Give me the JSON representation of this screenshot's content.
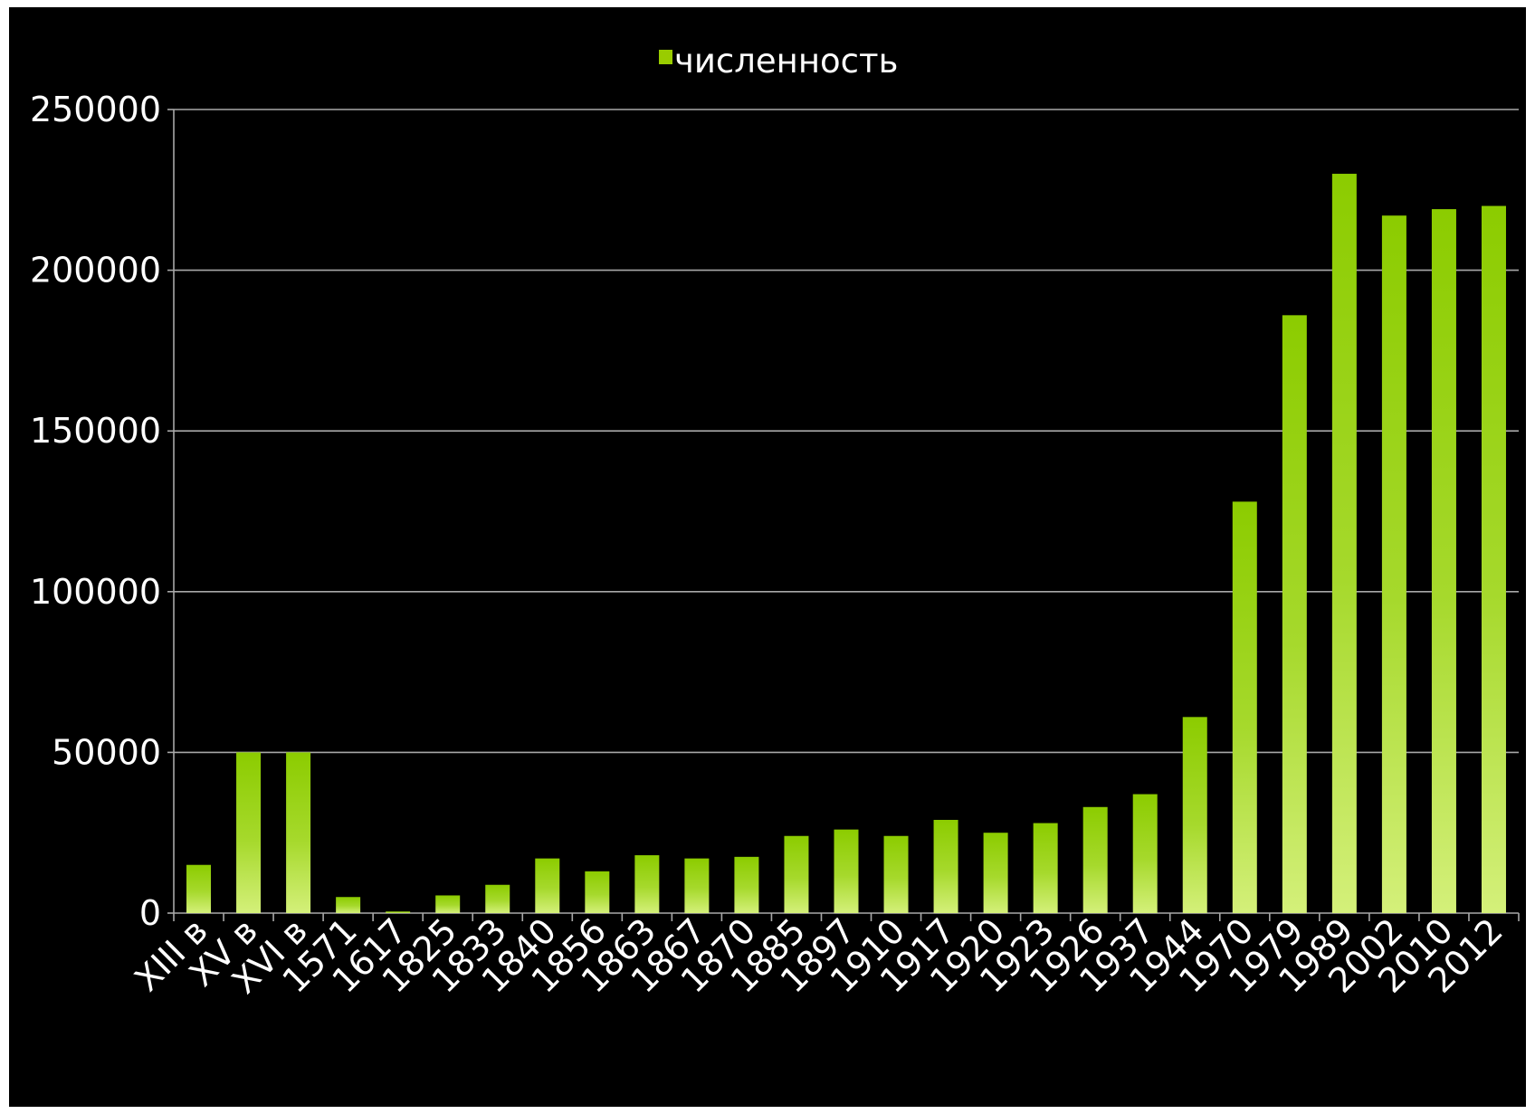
{
  "chart_data": {
    "type": "bar",
    "title": "",
    "xlabel": "",
    "ylabel": "",
    "ylim": [
      0,
      250000
    ],
    "yticks": [
      0,
      50000,
      100000,
      150000,
      200000,
      250000
    ],
    "grid": true,
    "legend": "top-center",
    "categories": [
      "XIII в",
      "XV в",
      "XVI в",
      "1571",
      "1617",
      "1825",
      "1833",
      "1840",
      "1856",
      "1863",
      "1867",
      "1870",
      "1885",
      "1897",
      "1910",
      "1917",
      "1920",
      "1923",
      "1926",
      "1937",
      "1944",
      "1970",
      "1979",
      "1989",
      "2002",
      "2010",
      "2012"
    ],
    "series": [
      {
        "name": "численность",
        "color": "#99cc00",
        "values": [
          15000,
          50000,
          50000,
          5000,
          500,
          5500,
          8800,
          17000,
          13000,
          18000,
          17000,
          17500,
          24000,
          26000,
          24000,
          29000,
          25000,
          28000,
          33000,
          37000,
          61000,
          128000,
          186000,
          230000,
          217000,
          219000,
          220000
        ]
      }
    ]
  }
}
